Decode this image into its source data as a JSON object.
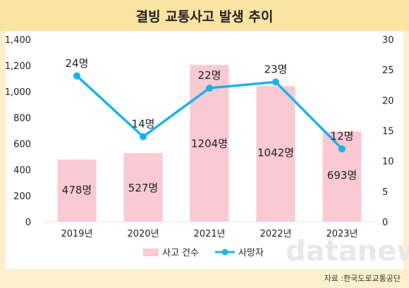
{
  "title": "결빙 교통사고 발생 추이",
  "source": "자료 :한국도로교통공단",
  "watermark": "datanews",
  "colors": {
    "background": "#fdf0cc",
    "title_bar": "#fbe3a4",
    "bar": "#f9c9d4",
    "line": "#1ab3ec"
  },
  "chart_data": {
    "type": "bar",
    "categories": [
      "2019년",
      "2020년",
      "2021년",
      "2022년",
      "2023년"
    ],
    "series": [
      {
        "name": "사고 건수",
        "type": "bar",
        "axis": "left",
        "values": [
          478,
          527,
          1204,
          1042,
          693
        ],
        "labels": [
          "478명",
          "527명",
          "1204명",
          "1042명",
          "693명"
        ]
      },
      {
        "name": "사망자",
        "type": "line",
        "axis": "right",
        "values": [
          24,
          14,
          22,
          23,
          12
        ],
        "labels": [
          "24명",
          "14명",
          "22명",
          "23명",
          "12명"
        ]
      }
    ],
    "y_left": {
      "ticks": [
        "0",
        "200",
        "400",
        "600",
        "800",
        "1,000",
        "1,200",
        "1,400"
      ],
      "ylim": [
        0,
        1400
      ]
    },
    "y_right": {
      "ticks": [
        "0",
        "5",
        "10",
        "15",
        "20",
        "25",
        "30"
      ],
      "ylim": [
        0,
        30
      ]
    },
    "grid": false,
    "legend_position": "bottom"
  }
}
